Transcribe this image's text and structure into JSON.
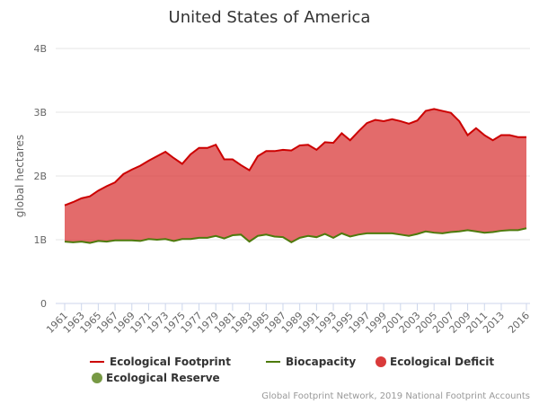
{
  "chart_data": {
    "type": "area",
    "title": "United States of America",
    "ylabel": "global hectares",
    "ylim": [
      0,
      4000000000
    ],
    "yticks": [
      {
        "value": 0,
        "label": "0"
      },
      {
        "value": 1000000000,
        "label": "1B"
      },
      {
        "value": 2000000000,
        "label": "2B"
      },
      {
        "value": 3000000000,
        "label": "3B"
      },
      {
        "value": 4000000000,
        "label": "4B"
      }
    ],
    "grid": true,
    "legend_placement": "bottom",
    "x": [
      1961,
      1962,
      1963,
      1964,
      1965,
      1966,
      1967,
      1968,
      1969,
      1970,
      1971,
      1972,
      1973,
      1974,
      1975,
      1976,
      1977,
      1978,
      1979,
      1980,
      1981,
      1982,
      1983,
      1984,
      1985,
      1986,
      1987,
      1988,
      1989,
      1990,
      1991,
      1992,
      1993,
      1994,
      1995,
      1996,
      1997,
      1998,
      1999,
      2000,
      2001,
      2002,
      2003,
      2004,
      2005,
      2006,
      2007,
      2008,
      2009,
      2010,
      2011,
      2012,
      2013,
      2014,
      2015,
      2016
    ],
    "series": [
      {
        "name": "Ecological Footprint",
        "color": "#cc0000",
        "unit_scale": 1000000000,
        "values": [
          1.54,
          1.59,
          1.65,
          1.68,
          1.77,
          1.84,
          1.9,
          2.03,
          2.1,
          2.16,
          2.24,
          2.31,
          2.38,
          2.28,
          2.19,
          2.34,
          2.44,
          2.44,
          2.49,
          2.26,
          2.26,
          2.17,
          2.09,
          2.31,
          2.39,
          2.39,
          2.41,
          2.4,
          2.48,
          2.49,
          2.41,
          2.53,
          2.52,
          2.67,
          2.56,
          2.7,
          2.83,
          2.88,
          2.86,
          2.89,
          2.86,
          2.82,
          2.87,
          3.02,
          3.05,
          3.02,
          2.99,
          2.86,
          2.64,
          2.75,
          2.64,
          2.56,
          2.64,
          2.64,
          2.61,
          2.61
        ]
      },
      {
        "name": "Biocapacity",
        "color": "#4e7a0c",
        "unit_scale": 1000000000,
        "values": [
          0.97,
          0.96,
          0.97,
          0.95,
          0.98,
          0.97,
          0.99,
          0.99,
          0.99,
          0.98,
          1.01,
          1.0,
          1.01,
          0.98,
          1.01,
          1.01,
          1.03,
          1.03,
          1.06,
          1.02,
          1.07,
          1.08,
          0.97,
          1.06,
          1.08,
          1.05,
          1.04,
          0.96,
          1.03,
          1.06,
          1.04,
          1.09,
          1.03,
          1.1,
          1.05,
          1.08,
          1.1,
          1.1,
          1.1,
          1.1,
          1.08,
          1.06,
          1.09,
          1.13,
          1.11,
          1.1,
          1.12,
          1.13,
          1.15,
          1.13,
          1.11,
          1.12,
          1.14,
          1.15,
          1.15,
          1.18
        ]
      }
    ],
    "areas": [
      {
        "name": "Ecological Deficit",
        "color": "#d93a3a"
      },
      {
        "name": "Ecological Reserve",
        "color": "#779944"
      }
    ],
    "credits": "Global Footprint Network, 2019 National Footprint Accounts"
  }
}
